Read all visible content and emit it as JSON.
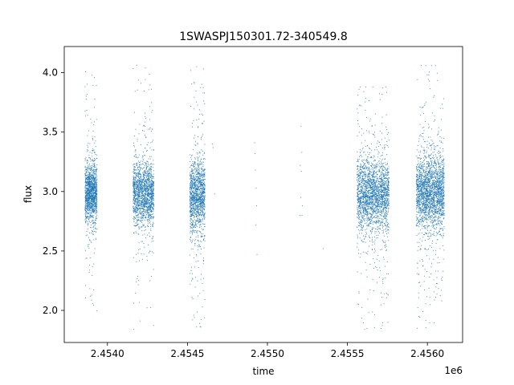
{
  "chart_data": {
    "type": "scatter",
    "title": "1SWASPJ150301.72-340549.8",
    "xlabel": "time",
    "ylabel": "flux",
    "x_offset_label": "1e6",
    "xlim": [
      2453730,
      2456220
    ],
    "ylim": [
      1.73,
      4.22
    ],
    "x_ticks": [
      2454000,
      2454500,
      2455000,
      2455500,
      2456000
    ],
    "x_tick_labels": [
      "2.4540",
      "2.4545",
      "2.4550",
      "2.4555",
      "2.4560"
    ],
    "y_ticks": [
      2.0,
      2.5,
      3.0,
      3.5,
      4.0
    ],
    "y_tick_labels": [
      "2.0",
      "2.5",
      "3.0",
      "3.5",
      "4.0"
    ],
    "grid": false,
    "marker_color": "#1f77b4",
    "series": [
      {
        "clusters": [
          {
            "x_range": [
              2453860,
              2453935
            ],
            "center": 2.98,
            "spread": 0.16,
            "y_min": 1.86,
            "y_max": 4.1,
            "count": 1400
          },
          {
            "x_range": [
              2454160,
              2454290
            ],
            "center": 2.98,
            "spread": 0.17,
            "y_min": 1.84,
            "y_max": 4.11,
            "count": 1700
          },
          {
            "x_range": [
              2454515,
              2454610
            ],
            "center": 2.96,
            "spread": 0.2,
            "y_min": 1.86,
            "y_max": 4.06,
            "count": 1400
          },
          {
            "x_range": [
              2455560,
              2455760
            ],
            "center": 2.98,
            "spread": 0.2,
            "y_min": 1.84,
            "y_max": 3.88,
            "count": 2300
          },
          {
            "x_range": [
              2455930,
              2456105
            ],
            "center": 3.0,
            "spread": 0.2,
            "y_min": 1.85,
            "y_max": 4.06,
            "count": 2300
          }
        ],
        "points": [
          {
            "x": 2454660,
            "y": 3.37
          },
          {
            "x": 2454670,
            "y": 2.98
          },
          {
            "x": 2454655,
            "y": 3.4
          },
          {
            "x": 2454920,
            "y": 3.41
          },
          {
            "x": 2454922,
            "y": 3.32
          },
          {
            "x": 2454925,
            "y": 3.18
          },
          {
            "x": 2454930,
            "y": 3.03
          },
          {
            "x": 2454932,
            "y": 2.88
          },
          {
            "x": 2454928,
            "y": 2.72
          },
          {
            "x": 2454935,
            "y": 2.47
          },
          {
            "x": 2455210,
            "y": 3.55
          },
          {
            "x": 2455215,
            "y": 3.33
          },
          {
            "x": 2455205,
            "y": 3.22
          },
          {
            "x": 2455212,
            "y": 3.17
          },
          {
            "x": 2455208,
            "y": 2.95
          },
          {
            "x": 2455218,
            "y": 2.88
          },
          {
            "x": 2455204,
            "y": 2.8
          },
          {
            "x": 2455216,
            "y": 2.8
          },
          {
            "x": 2455350,
            "y": 2.52
          }
        ]
      }
    ]
  }
}
